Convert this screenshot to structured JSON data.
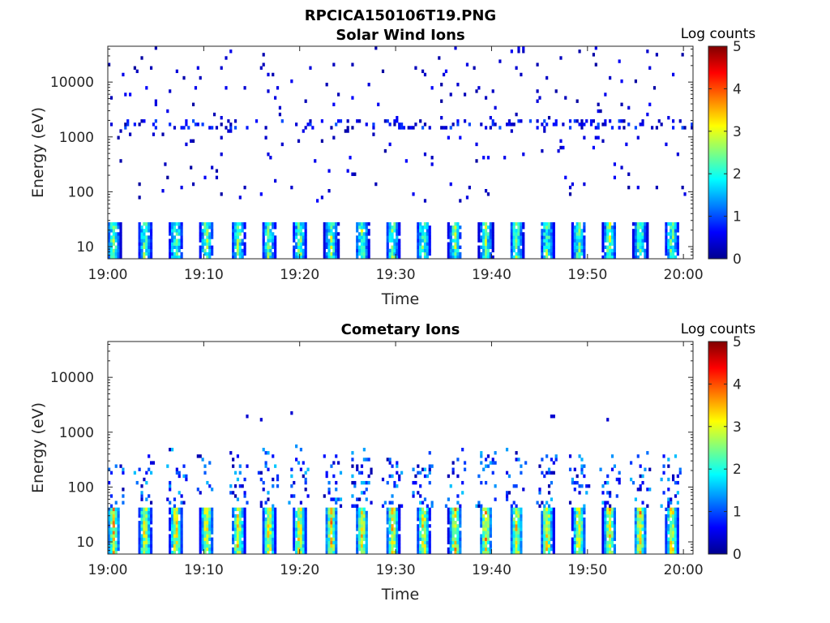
{
  "figure": {
    "title": "RPCICA150106T19.PNG"
  },
  "chart_data": [
    {
      "type": "heatmap",
      "title": "Solar Wind Ions",
      "xlabel": "Time",
      "ylabel": "Energy (eV)",
      "x_ticks": [
        "19:00",
        "19:10",
        "19:20",
        "19:30",
        "19:40",
        "19:50",
        "20:00"
      ],
      "y_ticks": [
        "10",
        "100",
        "1000",
        "10000"
      ],
      "y_scale": "log",
      "ylim": [
        6,
        45000
      ],
      "xlim_minutes": [
        0,
        61
      ],
      "colorbar": {
        "label": "Log counts",
        "ticks": [
          "0",
          "1",
          "2",
          "3",
          "4",
          "5"
        ],
        "range": [
          0,
          5
        ],
        "colormap": "jet"
      },
      "sweep_centers_minutes": [
        0.6,
        3.9,
        7.1,
        10.3,
        13.6,
        16.8,
        20.0,
        23.3,
        26.5,
        29.7,
        32.9,
        36.2,
        39.4,
        42.6,
        45.8,
        49.1,
        52.3,
        55.5,
        58.8
      ],
      "low_energy_band_eV": [
        6,
        28
      ],
      "low_energy_peak_log_counts": 2.6,
      "high_energy_ridge_eV": 1800,
      "high_energy_log_counts": 0.5
    },
    {
      "type": "heatmap",
      "title": "Cometary Ions",
      "xlabel": "Time",
      "ylabel": "Energy (eV)",
      "x_ticks": [
        "19:00",
        "19:10",
        "19:20",
        "19:30",
        "19:40",
        "19:50",
        "20:00"
      ],
      "y_ticks": [
        "10",
        "100",
        "1000",
        "10000"
      ],
      "y_scale": "log",
      "ylim": [
        6,
        45000
      ],
      "xlim_minutes": [
        0,
        61
      ],
      "colorbar": {
        "label": "Log counts",
        "ticks": [
          "0",
          "1",
          "2",
          "3",
          "4",
          "5"
        ],
        "range": [
          0,
          5
        ],
        "colormap": "jet"
      },
      "sweep_centers_minutes": [
        0.6,
        3.9,
        7.1,
        10.3,
        13.6,
        16.8,
        20.0,
        23.3,
        26.5,
        29.7,
        32.9,
        36.2,
        39.4,
        42.6,
        45.8,
        49.1,
        52.3,
        55.5,
        58.8
      ],
      "low_energy_band_eV": [
        6,
        40
      ],
      "low_energy_peak_log_counts": 3.4,
      "tail_max_eV": 400,
      "tail_log_counts": 1.0
    }
  ]
}
